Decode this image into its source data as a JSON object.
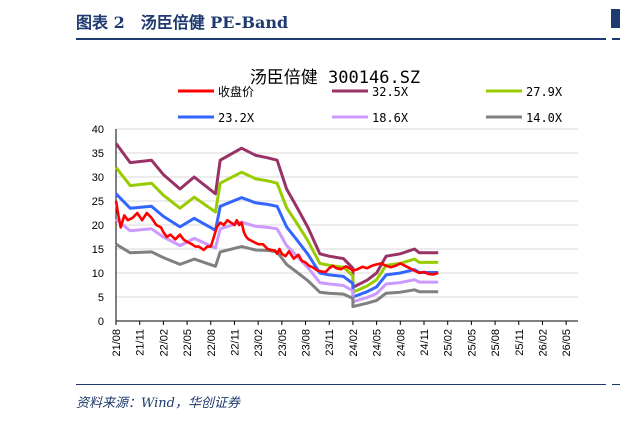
{
  "figure": {
    "title": "图表 2　汤臣倍健 PE-Band",
    "source": "资料来源：Wind，华创证券"
  },
  "chart_data": {
    "type": "line",
    "title": "汤臣倍健 300146.SZ",
    "ylim": [
      0,
      40
    ],
    "y_ticks": [
      "0",
      "5",
      "10",
      "15",
      "20",
      "25",
      "30",
      "35",
      "40"
    ],
    "x_ticks": [
      "21/08",
      "21/11",
      "22/02",
      "22/05",
      "22/08",
      "22/11",
      "23/02",
      "23/05",
      "23/08",
      "23/11",
      "24/02",
      "24/05",
      "24/08",
      "24/11",
      "25/02",
      "25/05",
      "25/08",
      "25/11",
      "26/02",
      "26/05"
    ],
    "grid": "horizontal",
    "legend_position": "top",
    "series": [
      {
        "name": "收盘价",
        "color": "#ff0000",
        "points": [
          [
            0,
            25
          ],
          [
            0.1,
            22
          ],
          [
            0.2,
            19.5
          ],
          [
            0.35,
            22
          ],
          [
            0.5,
            21
          ],
          [
            0.7,
            21.5
          ],
          [
            0.9,
            22.5
          ],
          [
            1.1,
            21
          ],
          [
            1.3,
            22.5
          ],
          [
            1.5,
            21.5
          ],
          [
            1.7,
            20
          ],
          [
            1.9,
            19.5
          ],
          [
            2,
            18.5
          ],
          [
            2.15,
            17.5
          ],
          [
            2.3,
            18
          ],
          [
            2.5,
            17
          ],
          [
            2.7,
            18
          ],
          [
            2.85,
            17
          ],
          [
            3,
            16.5
          ],
          [
            3.2,
            16
          ],
          [
            3.35,
            15.5
          ],
          [
            3.5,
            15.5
          ],
          [
            3.7,
            14.8
          ],
          [
            3.85,
            15.5
          ],
          [
            4,
            15.5
          ],
          [
            4.15,
            17.8
          ],
          [
            4.25,
            19.5
          ],
          [
            4.4,
            20.5
          ],
          [
            4.55,
            20
          ],
          [
            4.7,
            21
          ],
          [
            4.85,
            20.5
          ],
          [
            5,
            20
          ],
          [
            5.1,
            21
          ],
          [
            5.2,
            20
          ],
          [
            5.3,
            20.5
          ],
          [
            5.4,
            18.5
          ],
          [
            5.5,
            17.5
          ],
          [
            5.6,
            17
          ],
          [
            5.8,
            16.5
          ],
          [
            6,
            16
          ],
          [
            6.2,
            16
          ],
          [
            6.4,
            15
          ],
          [
            6.55,
            14.8
          ],
          [
            6.7,
            14.7
          ],
          [
            6.8,
            14
          ],
          [
            6.9,
            15
          ],
          [
            7,
            14
          ],
          [
            7.15,
            13.5
          ],
          [
            7.3,
            14.5
          ],
          [
            7.5,
            13
          ],
          [
            7.7,
            13.8
          ],
          [
            7.85,
            12.5
          ],
          [
            8,
            12.2
          ],
          [
            8.15,
            11.5
          ],
          [
            8.3,
            11.2
          ],
          [
            8.5,
            10.5
          ],
          [
            8.7,
            10.3
          ],
          [
            8.85,
            10.2
          ],
          [
            9,
            11
          ],
          [
            9.15,
            11.5
          ],
          [
            9.3,
            11
          ],
          [
            9.5,
            10.8
          ],
          [
            9.7,
            11.4
          ],
          [
            9.85,
            11
          ],
          [
            10,
            10.5
          ],
          [
            10.2,
            10.8
          ],
          [
            10.4,
            11.3
          ],
          [
            10.6,
            11
          ],
          [
            10.8,
            11.5
          ],
          [
            11,
            11.8
          ],
          [
            11.2,
            12
          ],
          [
            11.4,
            11.5
          ],
          [
            11.6,
            11.2
          ],
          [
            11.8,
            11.5
          ],
          [
            12,
            12
          ],
          [
            12.2,
            11.5
          ],
          [
            12.4,
            11
          ],
          [
            12.6,
            10.5
          ],
          [
            12.8,
            10
          ],
          [
            13,
            10.2
          ],
          [
            13.2,
            9.8
          ],
          [
            13.4,
            9.7
          ],
          [
            13.6,
            10
          ]
        ]
      },
      {
        "name": "32.5X",
        "color": "#993366",
        "points": [
          [
            0,
            37
          ],
          [
            0.6,
            33
          ],
          [
            1.5,
            33.5
          ],
          [
            2,
            30.5
          ],
          [
            2.7,
            27.5
          ],
          [
            3.3,
            30
          ],
          [
            4.2,
            26.5
          ],
          [
            4.4,
            33.5
          ],
          [
            5.3,
            36
          ],
          [
            5.9,
            34.5
          ],
          [
            6.4,
            34
          ],
          [
            6.8,
            33.5
          ],
          [
            7.2,
            27.5
          ],
          [
            7.6,
            24
          ],
          [
            8.1,
            19.5
          ],
          [
            8.6,
            14
          ],
          [
            9,
            13.5
          ],
          [
            9.6,
            13
          ],
          [
            10,
            11
          ],
          [
            10,
            7
          ],
          [
            10.6,
            8.5
          ],
          [
            11,
            10
          ],
          [
            11.4,
            13.5
          ],
          [
            12,
            14
          ],
          [
            12.6,
            15
          ],
          [
            12.8,
            14.2
          ],
          [
            13.6,
            14.2
          ]
        ]
      },
      {
        "name": "27.9X",
        "color": "#99cc00",
        "points": [
          [
            0,
            32
          ],
          [
            0.6,
            28.2
          ],
          [
            1.5,
            28.7
          ],
          [
            2,
            26.2
          ],
          [
            2.7,
            23.5
          ],
          [
            3.3,
            25.8
          ],
          [
            4.2,
            22.7
          ],
          [
            4.4,
            28.7
          ],
          [
            5.3,
            31
          ],
          [
            5.9,
            29.6
          ],
          [
            6.4,
            29.2
          ],
          [
            6.8,
            28.7
          ],
          [
            7.2,
            23.6
          ],
          [
            7.6,
            20.6
          ],
          [
            8.1,
            16.7
          ],
          [
            8.6,
            12
          ],
          [
            9,
            11.6
          ],
          [
            9.6,
            11.2
          ],
          [
            10,
            9.4
          ],
          [
            10,
            6
          ],
          [
            10.6,
            7.3
          ],
          [
            11,
            8.6
          ],
          [
            11.4,
            11.6
          ],
          [
            12,
            12
          ],
          [
            12.6,
            12.9
          ],
          [
            12.8,
            12.2
          ],
          [
            13.6,
            12.2
          ]
        ]
      },
      {
        "name": "23.2X",
        "color": "#3366ff",
        "points": [
          [
            0,
            26.5
          ],
          [
            0.6,
            23.5
          ],
          [
            1.5,
            23.9
          ],
          [
            2,
            21.8
          ],
          [
            2.7,
            19.6
          ],
          [
            3.3,
            21.4
          ],
          [
            4.2,
            18.9
          ],
          [
            4.4,
            23.9
          ],
          [
            5.3,
            25.7
          ],
          [
            5.9,
            24.6
          ],
          [
            6.4,
            24.3
          ],
          [
            6.8,
            23.9
          ],
          [
            7.2,
            19.6
          ],
          [
            7.6,
            17.1
          ],
          [
            8.1,
            13.9
          ],
          [
            8.6,
            10
          ],
          [
            9,
            9.6
          ],
          [
            9.6,
            9.3
          ],
          [
            10,
            7.8
          ],
          [
            10,
            5
          ],
          [
            10.6,
            6.1
          ],
          [
            11,
            7.1
          ],
          [
            11.4,
            9.6
          ],
          [
            12,
            10
          ],
          [
            12.6,
            10.7
          ],
          [
            12.8,
            10.1
          ],
          [
            13.6,
            10.1
          ]
        ]
      },
      {
        "name": "18.6X",
        "color": "#cc99ff",
        "points": [
          [
            0,
            21.2
          ],
          [
            0.6,
            18.8
          ],
          [
            1.5,
            19.2
          ],
          [
            2,
            17.5
          ],
          [
            2.7,
            15.7
          ],
          [
            3.3,
            17.2
          ],
          [
            4.2,
            15.2
          ],
          [
            4.4,
            19.2
          ],
          [
            5.3,
            20.6
          ],
          [
            5.9,
            19.7
          ],
          [
            6.4,
            19.5
          ],
          [
            6.8,
            19.2
          ],
          [
            7.2,
            15.7
          ],
          [
            7.6,
            13.7
          ],
          [
            8.1,
            11.1
          ],
          [
            8.6,
            8
          ],
          [
            9,
            7.7
          ],
          [
            9.6,
            7.4
          ],
          [
            10,
            6.3
          ],
          [
            10,
            4
          ],
          [
            10.6,
            4.9
          ],
          [
            11,
            5.7
          ],
          [
            11.4,
            7.7
          ],
          [
            12,
            8
          ],
          [
            12.6,
            8.6
          ],
          [
            12.8,
            8.1
          ],
          [
            13.6,
            8.1
          ]
        ]
      },
      {
        "name": "14.0X",
        "color": "#808080",
        "points": [
          [
            0,
            16
          ],
          [
            0.6,
            14.2
          ],
          [
            1.5,
            14.4
          ],
          [
            2,
            13.2
          ],
          [
            2.7,
            11.8
          ],
          [
            3.3,
            12.9
          ],
          [
            4.2,
            11.4
          ],
          [
            4.4,
            14.4
          ],
          [
            5.3,
            15.5
          ],
          [
            5.9,
            14.8
          ],
          [
            6.4,
            14.7
          ],
          [
            6.8,
            14.4
          ],
          [
            7.2,
            11.8
          ],
          [
            7.6,
            10.3
          ],
          [
            8.1,
            8.4
          ],
          [
            8.6,
            6
          ],
          [
            9,
            5.8
          ],
          [
            9.6,
            5.6
          ],
          [
            10,
            4.7
          ],
          [
            10,
            3
          ],
          [
            10.6,
            3.7
          ],
          [
            11,
            4.3
          ],
          [
            11.4,
            5.8
          ],
          [
            12,
            6
          ],
          [
            12.6,
            6.5
          ],
          [
            12.8,
            6.1
          ],
          [
            13.6,
            6.1
          ]
        ]
      }
    ]
  }
}
